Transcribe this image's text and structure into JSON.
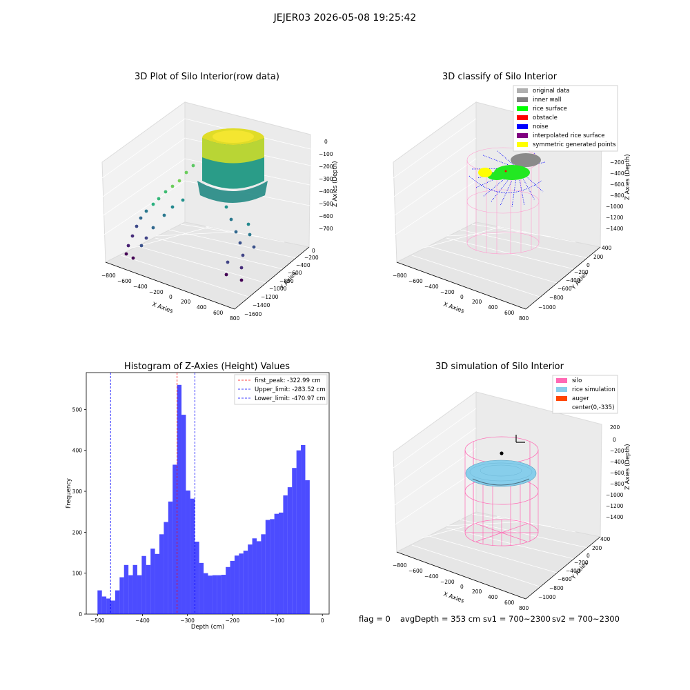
{
  "suptitle": "JEJER03 2026-05-08 19:25:42",
  "panels": {
    "raw": {
      "title": "3D Plot of Silo Interior(row data)",
      "xlabel": "X Axies",
      "ylabel": "Y Axies",
      "zlabel": "Z Axies (Depth)",
      "xticks": [
        "−800",
        "−600",
        "−400",
        "−200",
        "0",
        "200",
        "400",
        "600",
        "800"
      ],
      "yticks": [
        "0",
        "−200",
        "−400",
        "−600",
        "−800",
        "−1000",
        "−1200",
        "−1400",
        "−1600"
      ],
      "zticks": [
        "0",
        "−100",
        "−200",
        "−300",
        "−400",
        "−500",
        "−600",
        "−700"
      ]
    },
    "classify": {
      "title": "3D classify of Silo Interior",
      "xlabel": "X Axies",
      "ylabel": "Y Axies",
      "zlabel": "Z Axies (Depth)",
      "xticks": [
        "−800",
        "−600",
        "−400",
        "−200",
        "0",
        "200",
        "400",
        "600",
        "800"
      ],
      "yticks": [
        "400",
        "200",
        "0",
        "−200",
        "−400",
        "−600",
        "−800",
        "−1000"
      ],
      "zticks": [
        "−200",
        "−400",
        "−600",
        "−800",
        "−1000",
        "−1200",
        "−1400"
      ],
      "legend": [
        {
          "label": "original data",
          "color": "#b0b0b0"
        },
        {
          "label": "inner wall",
          "color": "#808080"
        },
        {
          "label": "rice surface",
          "color": "#00ff00"
        },
        {
          "label": "obstacle",
          "color": "#ff0000"
        },
        {
          "label": "noise",
          "color": "#0000ff"
        },
        {
          "label": "interpolated rice surface",
          "color": "#800080"
        },
        {
          "label": "symmetric generated points",
          "color": "#ffff00"
        }
      ]
    },
    "hist": {
      "title": "Histogram of Z-Axies (Height) Values",
      "xlabel": "Depth (cm)",
      "ylabel": "Frequency",
      "legend": [
        {
          "label": "first_peak: -322.99 cm",
          "color": "#ff0000"
        },
        {
          "label": "Upper_limit: -283.52 cm",
          "color": "#0000ff"
        },
        {
          "label": "Lower_limit: -470.97 cm",
          "color": "#0000ff"
        }
      ]
    },
    "sim": {
      "title": "3D simulation of Silo Interior",
      "xlabel": "X Axies",
      "ylabel": "Y Axies",
      "zlabel": "Z Axies (Depth)",
      "xticks": [
        "−800",
        "−600",
        "−400",
        "−200",
        "0",
        "200",
        "400",
        "600",
        "800"
      ],
      "yticks": [
        "400",
        "200",
        "0",
        "−200",
        "−400",
        "−600",
        "−800",
        "−1000"
      ],
      "zticks": [
        "200",
        "0",
        "−200",
        "−400",
        "−600",
        "−800",
        "−1000",
        "−1200",
        "−1400"
      ],
      "legend": [
        {
          "label": "silo",
          "color": "#ff69b4"
        },
        {
          "label": "rice simulation",
          "color": "#87ceeb"
        },
        {
          "label": "auger",
          "color": "#ff4500"
        },
        {
          "label": "center(0,-335)",
          "color": ""
        }
      ]
    }
  },
  "status": {
    "flag": "flag = 0",
    "avg": "avgDepth = 353 cm",
    "sv1": "sv1 = 700~2300",
    "sv2": "sv2 = 700~2300"
  },
  "chart_data": [
    {
      "type": "scatter",
      "title": "3D Plot of Silo Interior(row data)",
      "xlabel": "X Axies",
      "ylabel": "Y Axies",
      "zlabel": "Z Axies (Depth)",
      "xlim": [
        -800,
        800
      ],
      "ylim": [
        -1600,
        0
      ],
      "zlim": [
        -700,
        0
      ],
      "colormap": "viridis"
    },
    {
      "type": "scatter",
      "title": "3D classify of Silo Interior",
      "xlim": [
        -800,
        800
      ],
      "ylim": [
        -1000,
        400
      ],
      "zlim": [
        -1400,
        -200
      ],
      "series": [
        {
          "name": "original data"
        },
        {
          "name": "inner wall"
        },
        {
          "name": "rice surface"
        },
        {
          "name": "obstacle"
        },
        {
          "name": "noise"
        },
        {
          "name": "interpolated rice surface"
        },
        {
          "name": "symmetric generated points"
        }
      ]
    },
    {
      "type": "bar",
      "title": "Histogram of Z-Axies (Height) Values",
      "xlabel": "Depth (cm)",
      "ylabel": "Frequency",
      "xlim": [
        -525,
        15
      ],
      "ylim": [
        0,
        590
      ],
      "xticks": [
        -500,
        -400,
        -300,
        -200,
        -100,
        0
      ],
      "yticks": [
        0,
        100,
        200,
        300,
        400,
        500
      ],
      "bin_start": -500,
      "bin_width": 9.83,
      "values": [
        58,
        43,
        38,
        33,
        58,
        90,
        120,
        95,
        120,
        95,
        142,
        120,
        160,
        147,
        195,
        225,
        275,
        365,
        560,
        487,
        302,
        282,
        177,
        125,
        100,
        94,
        95,
        95,
        96,
        115,
        130,
        143,
        148,
        155,
        170,
        185,
        178,
        195,
        230,
        232,
        245,
        248,
        290,
        310,
        357,
        400,
        413,
        327
      ],
      "vlines": [
        {
          "name": "first_peak",
          "x": -322.99,
          "color": "#ff0000"
        },
        {
          "name": "Upper_limit",
          "x": -283.52,
          "color": "#0000ff"
        },
        {
          "name": "Lower_limit",
          "x": -470.97,
          "color": "#0000ff"
        }
      ]
    },
    {
      "type": "scatter",
      "title": "3D simulation of Silo Interior",
      "xlim": [
        -800,
        800
      ],
      "ylim": [
        -1000,
        400
      ],
      "zlim": [
        -1400,
        200
      ],
      "series": [
        {
          "name": "silo"
        },
        {
          "name": "rice simulation"
        },
        {
          "name": "auger"
        },
        {
          "name": "center(0,-335)"
        }
      ]
    }
  ]
}
